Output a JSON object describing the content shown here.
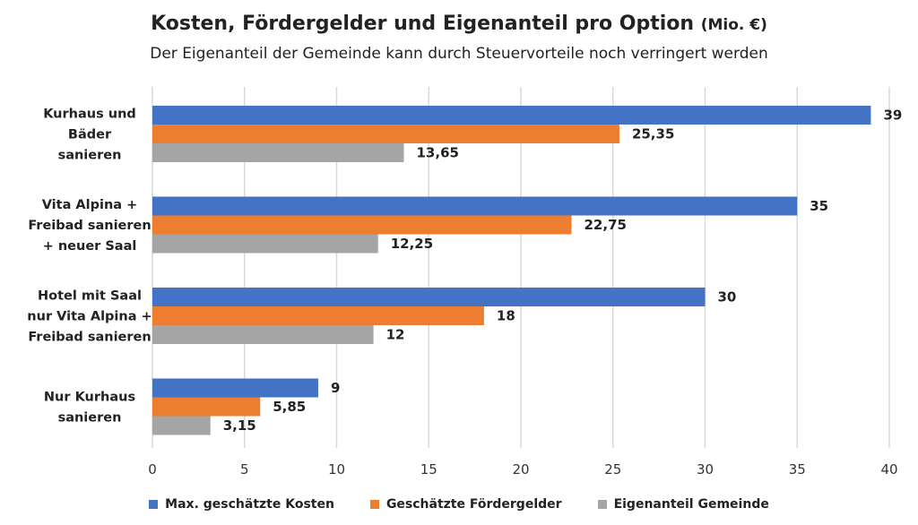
{
  "chart_data": {
    "type": "bar",
    "orientation": "horizontal",
    "title": "Kosten, Fördergelder und Eigenanteil pro Option",
    "title_unit": "(Mio. €)",
    "subtitle": "Der Eigenanteil der Gemeinde kann durch Steuervorteile noch verringert werden",
    "categories": [
      [
        "Kurhaus und",
        "Bäder",
        "sanieren"
      ],
      [
        "Vita Alpina +",
        "Freibad sanieren",
        "+ neuer Saal"
      ],
      [
        "Hotel mit Saal",
        "nur Vita Alpina +",
        "Freibad sanieren"
      ],
      [
        "Nur Kurhaus",
        "sanieren"
      ]
    ],
    "series": [
      {
        "name": "Max. geschätzte Kosten",
        "color": "#4472C4",
        "values": [
          39,
          35,
          30,
          9
        ],
        "labels": [
          "39",
          "35",
          "30",
          "9"
        ]
      },
      {
        "name": "Geschätzte Fördergelder",
        "color": "#ED7D31",
        "values": [
          25.35,
          22.75,
          18,
          5.85
        ],
        "labels": [
          "25,35",
          "22,75",
          "18",
          "5,85"
        ]
      },
      {
        "name": "Eigenanteil Gemeinde",
        "color": "#A5A5A5",
        "values": [
          13.65,
          12.25,
          12,
          3.15
        ],
        "labels": [
          "13,65",
          "12,25",
          "12",
          "3,15"
        ]
      }
    ],
    "xlim": [
      0,
      40
    ],
    "xticks": [
      0,
      5,
      10,
      15,
      20,
      25,
      30,
      35,
      40
    ],
    "grid": true,
    "legend_position": "bottom"
  }
}
